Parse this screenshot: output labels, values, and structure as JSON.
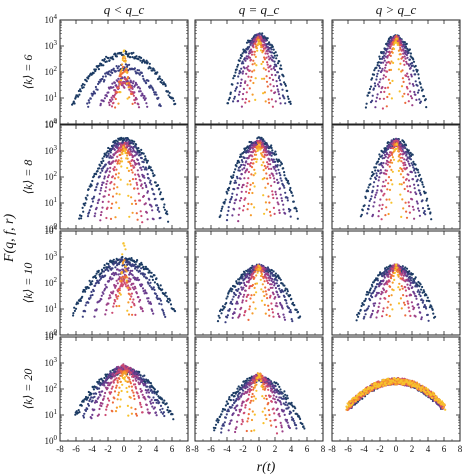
{
  "chart_data": {
    "type": "scatter",
    "layout": "4x3 grid of panels",
    "column_titles": [
      "q < q_c",
      "q = q_c",
      "q > q_c"
    ],
    "row_labels": [
      "⟨k⟩ = 6",
      "⟨k⟩ = 8",
      "⟨k⟩ = 10",
      "⟨k⟩ = 20"
    ],
    "xlabel": "r(t)",
    "ylabel": "F(q, f, r)",
    "x_ticks": [
      "-8",
      "-6",
      "-4",
      "-2",
      "0",
      "2",
      "4",
      "6",
      "8"
    ],
    "xlim": [
      -8,
      8
    ],
    "y_ticks": [
      {
        "base": "10",
        "exp": "0"
      },
      {
        "base": "10",
        "exp": "1"
      },
      {
        "base": "10",
        "exp": "2"
      },
      {
        "base": "10",
        "exp": "3"
      },
      {
        "base": "10",
        "exp": "4"
      }
    ],
    "yscale": "log",
    "ylim": [
      1,
      10000
    ],
    "grid": false,
    "legend": "none",
    "series_colors": [
      "#f7c22d",
      "#f59b2b",
      "#ec6a3c",
      "#cc4a72",
      "#9b3f87",
      "#6a3d8e",
      "#3a3f7f",
      "#1b3a63"
    ],
    "panels": [
      {
        "row": 0,
        "col": 0,
        "peak_log": [
          2.8,
          2.5,
          2.1,
          1.7,
          1.5,
          1.7,
          2.2,
          2.7
        ],
        "width": [
          0.25,
          0.4,
          0.7,
          1.1,
          1.6,
          2.2,
          2.8,
          3.4
        ],
        "floor_log": 0.9
      },
      {
        "row": 0,
        "col": 1,
        "peak_log": [
          3.2,
          3.2,
          3.25,
          3.3,
          3.3,
          3.35,
          3.35,
          3.4
        ],
        "width": [
          0.25,
          0.4,
          0.6,
          0.8,
          1.0,
          1.25,
          1.5,
          1.8
        ],
        "floor_log": 0.9
      },
      {
        "row": 0,
        "col": 2,
        "peak_log": [
          3.3,
          3.3,
          3.3,
          3.3,
          3.3,
          3.3,
          3.3,
          3.3
        ],
        "width": [
          0.25,
          0.4,
          0.55,
          0.75,
          0.95,
          1.2,
          1.45,
          1.75
        ],
        "floor_log": 0.9
      },
      {
        "row": 1,
        "col": 0,
        "peak_log": [
          3.1,
          3.1,
          3.15,
          3.2,
          3.25,
          3.3,
          3.35,
          3.4
        ],
        "width": [
          0.3,
          0.5,
          0.75,
          1.0,
          1.3,
          1.6,
          1.95,
          2.35
        ],
        "floor_log": 0.5
      },
      {
        "row": 1,
        "col": 1,
        "peak_log": [
          3.2,
          3.2,
          3.25,
          3.3,
          3.3,
          3.35,
          3.35,
          3.4
        ],
        "width": [
          0.3,
          0.45,
          0.65,
          0.9,
          1.15,
          1.45,
          1.75,
          2.1
        ],
        "floor_log": 0.6
      },
      {
        "row": 1,
        "col": 2,
        "peak_log": [
          3.2,
          3.2,
          3.25,
          3.3,
          3.3,
          3.35,
          3.35,
          3.4
        ],
        "width": [
          0.28,
          0.42,
          0.6,
          0.8,
          1.0,
          1.3,
          1.6,
          1.9
        ],
        "floor_log": 0.6
      },
      {
        "row": 2,
        "col": 0,
        "peak_log": [
          3.6,
          2.8,
          2.3,
          2.0,
          2.2,
          2.5,
          2.8,
          2.9
        ],
        "width": [
          0.2,
          0.35,
          0.6,
          1.0,
          1.5,
          2.1,
          2.7,
          3.3
        ],
        "floor_log": 1.0
      },
      {
        "row": 2,
        "col": 1,
        "peak_log": [
          2.6,
          2.6,
          2.6,
          2.6,
          2.6,
          2.6,
          2.6,
          2.6
        ],
        "width": [
          0.25,
          0.45,
          0.7,
          1.0,
          1.35,
          1.75,
          2.2,
          2.7
        ],
        "floor_log": 0.8
      },
      {
        "row": 2,
        "col": 2,
        "peak_log": [
          2.6,
          2.6,
          2.6,
          2.6,
          2.6,
          2.6,
          2.6,
          2.6
        ],
        "width": [
          0.25,
          0.4,
          0.65,
          0.95,
          1.3,
          1.7,
          2.15,
          2.6
        ],
        "floor_log": 0.8
      },
      {
        "row": 3,
        "col": 0,
        "peak_log": [
          2.5,
          2.6,
          2.7,
          2.8,
          2.85,
          2.8,
          2.75,
          2.7
        ],
        "width": [
          0.35,
          0.6,
          0.9,
          1.3,
          1.75,
          2.25,
          2.8,
          3.4
        ],
        "floor_log": 1.1
      },
      {
        "row": 3,
        "col": 1,
        "peak_log": [
          2.6,
          2.55,
          2.5,
          2.5,
          2.45,
          2.45,
          2.4,
          2.4
        ],
        "width": [
          0.3,
          0.5,
          0.8,
          1.15,
          1.55,
          2.0,
          2.5,
          3.0
        ],
        "floor_log": 0.6
      },
      {
        "row": 3,
        "col": 2,
        "peak_log": [
          2.3,
          2.3,
          2.3,
          2.3,
          2.3,
          2.3,
          2.3,
          2.3
        ],
        "width": [
          2.3,
          2.3,
          2.25,
          2.25,
          2.2,
          2.2,
          2.15,
          2.1
        ],
        "floor_log": 0.6
      }
    ]
  }
}
